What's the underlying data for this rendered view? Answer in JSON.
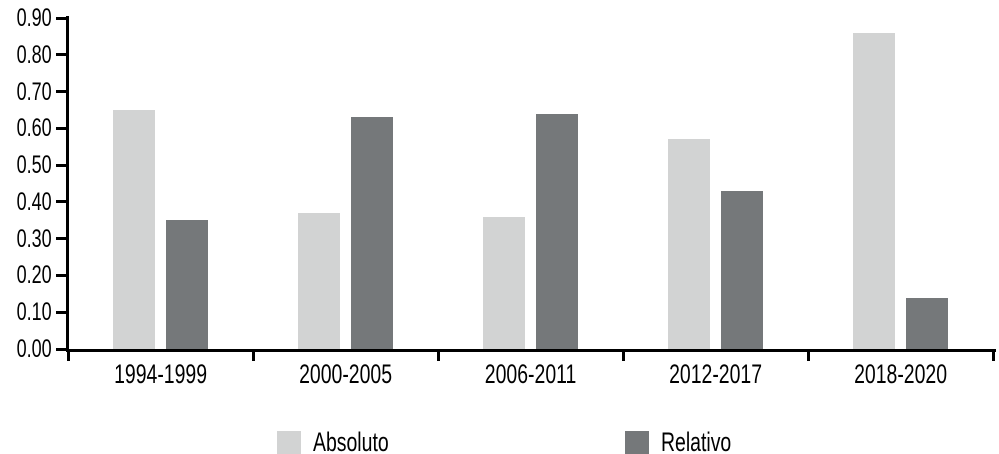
{
  "chart_data": {
    "type": "bar",
    "title": "",
    "xlabel": "",
    "ylabel": "",
    "categories": [
      "1994-1999",
      "2000-2005",
      "2006-2011",
      "2012-2017",
      "2018-2020"
    ],
    "series": [
      {
        "name": "Absoluto",
        "color": "#d2d3d3",
        "values": [
          0.65,
          0.37,
          0.36,
          0.57,
          0.86
        ]
      },
      {
        "name": "Relativo",
        "color": "#75787a",
        "values": [
          0.35,
          0.63,
          0.64,
          0.43,
          0.14
        ]
      }
    ],
    "ylim": [
      0.0,
      0.9
    ],
    "ytick_step": 0.1,
    "ytick_labels": [
      "0.00",
      "0.10",
      "0.20",
      "0.30",
      "0.40",
      "0.50",
      "0.60",
      "0.70",
      "0.80",
      "0.90"
    ],
    "grid": false,
    "legend_position": "bottom",
    "axis_color": "#000000",
    "background_color": "#ffffff"
  }
}
